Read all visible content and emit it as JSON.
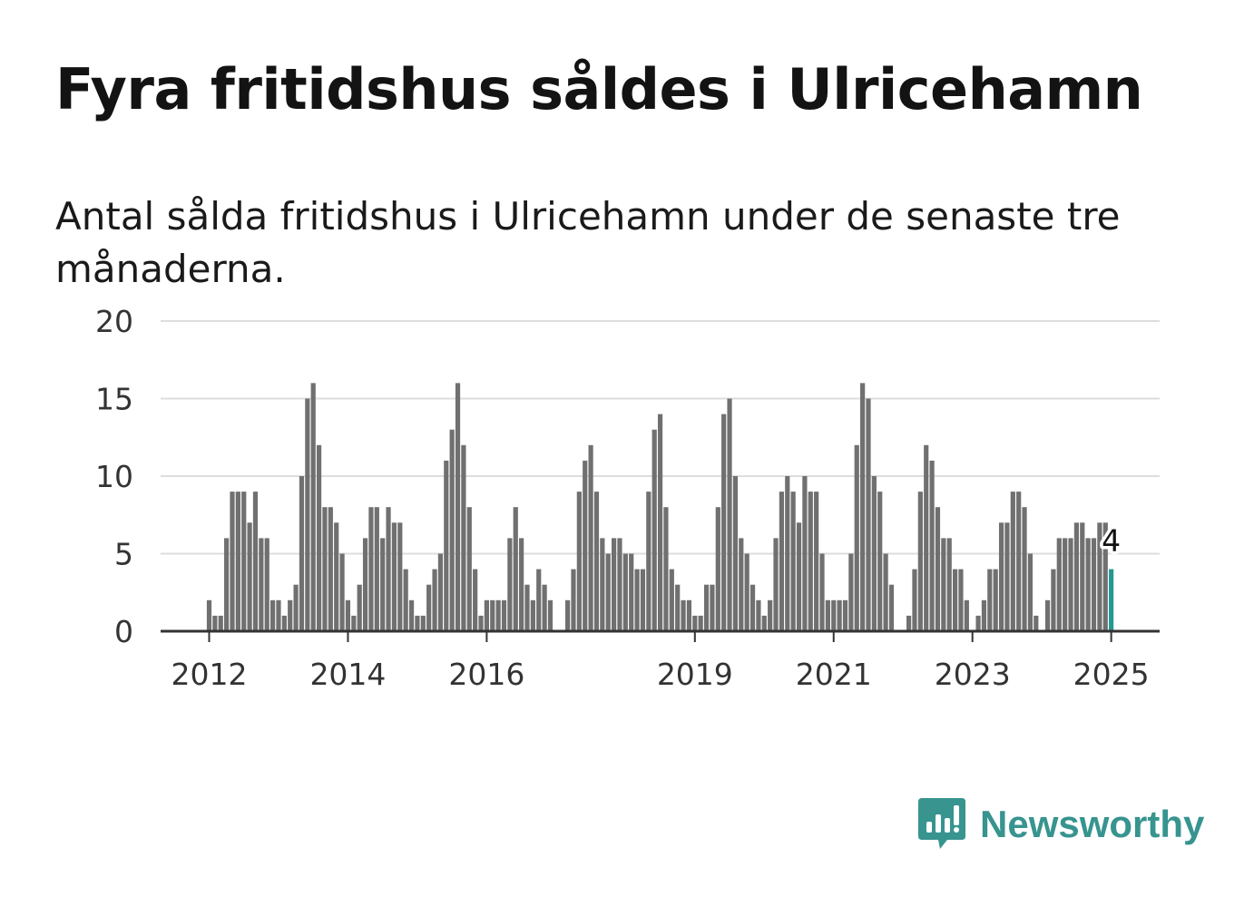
{
  "title": "Fyra fritidshus såldes i Ulricehamn",
  "subtitle": "Antal sålda fritidshus i Ulricehamn under de senaste tre månaderna.",
  "brand": {
    "name": "Newsworthy",
    "color": "#37948f"
  },
  "chart_data": {
    "type": "bar",
    "ylim": [
      0,
      20
    ],
    "yticks": [
      "0",
      "5",
      "10",
      "15",
      "20"
    ],
    "xticks": [
      {
        "label": "2012",
        "index": 9
      },
      {
        "label": "2014",
        "index": 33
      },
      {
        "label": "2016",
        "index": 57
      },
      {
        "label": "2019",
        "index": 93
      },
      {
        "label": "2021",
        "index": 117
      },
      {
        "label": "2023",
        "index": 141
      },
      {
        "label": "2025",
        "index": 165
      }
    ],
    "grid": true,
    "bar_color": "#707070",
    "highlight_color": "#259890",
    "highlight_label": "4",
    "values": [
      0,
      0,
      0,
      0,
      0,
      0,
      0,
      0,
      0,
      2,
      1,
      1,
      6,
      9,
      9,
      9,
      7,
      9,
      6,
      6,
      2,
      2,
      1,
      2,
      3,
      10,
      15,
      16,
      12,
      8,
      8,
      7,
      5,
      2,
      1,
      3,
      6,
      8,
      8,
      6,
      8,
      7,
      7,
      4,
      2,
      1,
      1,
      3,
      4,
      5,
      11,
      13,
      16,
      12,
      8,
      4,
      1,
      2,
      2,
      2,
      2,
      6,
      8,
      6,
      3,
      2,
      4,
      3,
      2,
      0,
      0,
      2,
      4,
      9,
      11,
      12,
      9,
      6,
      5,
      6,
      6,
      5,
      5,
      4,
      4,
      9,
      13,
      14,
      8,
      4,
      3,
      2,
      2,
      1,
      1,
      3,
      3,
      8,
      14,
      15,
      10,
      6,
      5,
      3,
      2,
      1,
      2,
      6,
      9,
      10,
      9,
      7,
      10,
      9,
      9,
      5,
      2,
      2,
      2,
      2,
      5,
      12,
      16,
      15,
      10,
      9,
      5,
      3,
      0,
      0,
      1,
      4,
      9,
      12,
      11,
      8,
      6,
      6,
      4,
      4,
      2,
      0,
      1,
      2,
      4,
      4,
      7,
      7,
      9,
      9,
      8,
      5,
      1,
      0,
      2,
      4,
      6,
      6,
      6,
      7,
      7,
      6,
      6,
      7,
      7,
      4
    ]
  }
}
